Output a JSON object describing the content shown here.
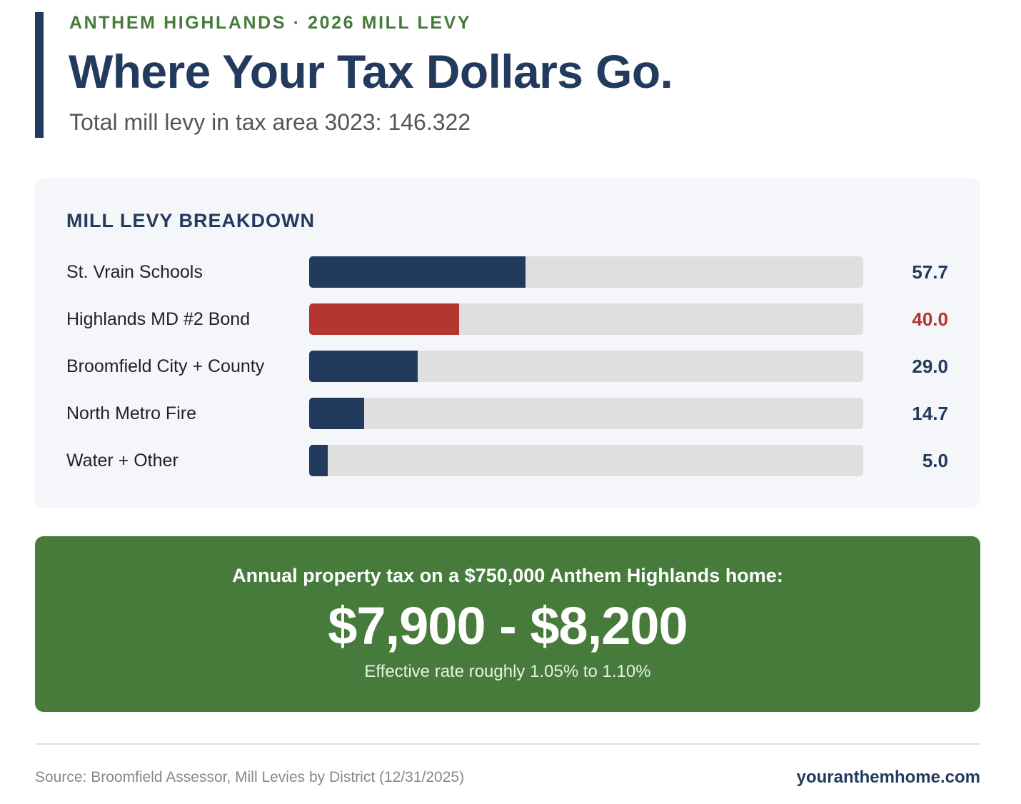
{
  "header": {
    "eyebrow": "ANTHEM HIGHLANDS · 2026 MILL LEVY",
    "title": "Where Your Tax Dollars Go.",
    "subtitle": "Total mill levy in tax area 3023: 146.322"
  },
  "colors": {
    "navy": "#223a5e",
    "red": "#b53530",
    "green": "#467b3b",
    "track": "#dfdfdf"
  },
  "chart_data": {
    "type": "bar",
    "orientation": "horizontal",
    "title": "MILL LEVY BREAKDOWN",
    "categories": [
      "St. Vrain Schools",
      "Highlands MD #2 Bond",
      "Broomfield City + County",
      "North Metro Fire",
      "Water + Other"
    ],
    "values": [
      57.7,
      40.0,
      29.0,
      14.7,
      5.0
    ],
    "value_labels": [
      "57.7",
      "40.0",
      "29.0",
      "14.7",
      "5.0"
    ],
    "bar_colors": [
      "#223a5e",
      "#b53530",
      "#223a5e",
      "#223a5e",
      "#223a5e"
    ],
    "xlim": [
      0,
      148
    ],
    "grid": false,
    "legend": "none"
  },
  "callout": {
    "label": "Annual property tax on a $750,000 Anthem Highlands home:",
    "amount": "$7,900 - $8,200",
    "note": "Effective rate roughly 1.05% to 1.10%"
  },
  "footer": {
    "source": "Source: Broomfield Assessor, Mill Levies by District (12/31/2025)",
    "site": "youranthemhome.com"
  }
}
